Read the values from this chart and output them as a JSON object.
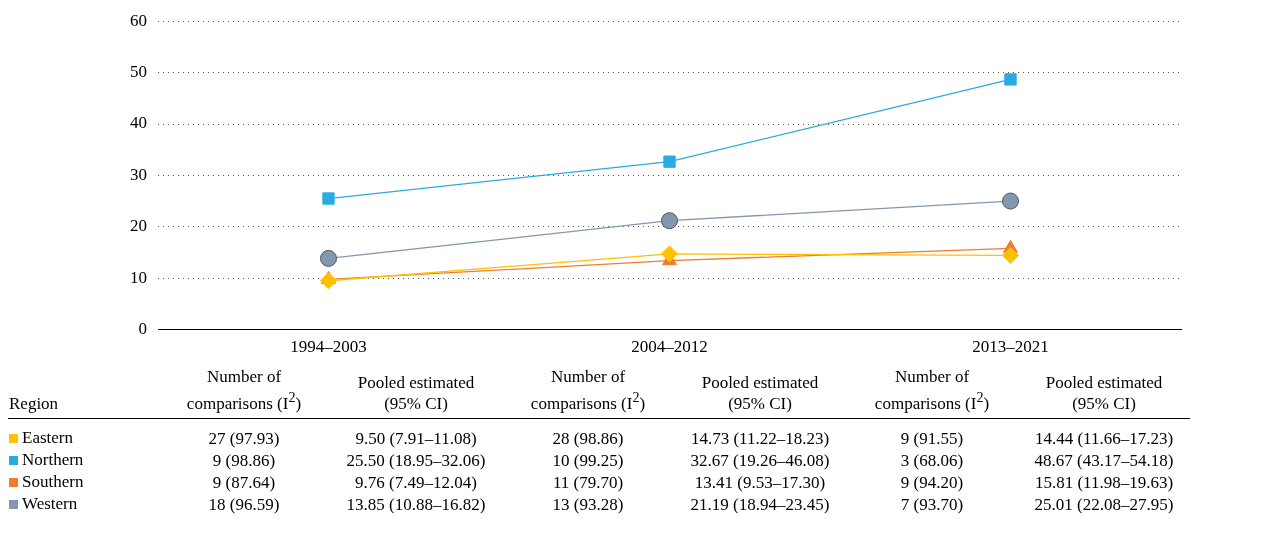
{
  "chart_data": {
    "type": "line",
    "categories": [
      "1994–2003",
      "2004–2012",
      "2013–2021"
    ],
    "ylim": [
      0,
      60
    ],
    "yticks": [
      0,
      10,
      20,
      30,
      40,
      50,
      60
    ],
    "grid": "y",
    "legend": "bottom left",
    "series": [
      {
        "name": "Eastern",
        "color": "#ffc000",
        "marker": "diamond",
        "values": [
          9.5,
          14.73,
          14.44
        ],
        "value_labels": [
          "9.50 (7.91–11.08)",
          "14.73 (11.22–18.23)",
          "14.44 (11.66–17.23)"
        ]
      },
      {
        "name": "Northern",
        "color": "#29abe2",
        "marker": "square",
        "values": [
          25.5,
          32.67,
          48.67
        ],
        "value_labels": [
          "25.50 (18.95–32.06)",
          "32.67 (19.26–46.08)",
          "48.67 (43.17–54.18)"
        ]
      },
      {
        "name": "Southern",
        "color": "#ed7d31",
        "marker": "triangle",
        "values": [
          9.76,
          13.41,
          15.81
        ],
        "value_labels": [
          "9.76 (7.49–12.04)",
          "13.41 (9.53–17.30)",
          "15.81 (11.98–19.63)"
        ]
      },
      {
        "name": "Western",
        "color": "#8497b0",
        "marker": "circle",
        "values": [
          13.85,
          21.19,
          25.01
        ],
        "value_labels": [
          "13.85 (10.88–16.82)",
          "21.19 (18.94–23.45)",
          "25.01 (22.08–27.95)"
        ]
      }
    ],
    "annotations": [
      "Region",
      "Number of comparisons (I$^{2}$)",
      "Pooled estimated (95% CI)",
      "27 (97.93)",
      "28 (98.86)",
      "9 (91.55)",
      "9 (98.86)",
      "10 (99.25)",
      "3 (68.06)",
      "9 (87.64)",
      "11 (79.70)",
      "9 (94.20)",
      "18 (96.59)",
      "13 (93.28)",
      "7 (93.70)"
    ]
  }
}
